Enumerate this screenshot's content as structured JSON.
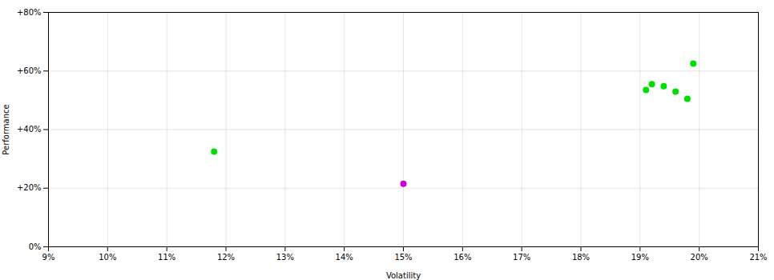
{
  "chart_data": {
    "type": "scatter",
    "xlabel": "Volatility",
    "ylabel": "Performance",
    "xlim": [
      0.09,
      0.21
    ],
    "ylim": [
      0.0,
      0.8
    ],
    "xticks": [
      {
        "value": 0.09,
        "label": "9%"
      },
      {
        "value": 0.1,
        "label": "10%"
      },
      {
        "value": 0.11,
        "label": "11%"
      },
      {
        "value": 0.12,
        "label": "12%"
      },
      {
        "value": 0.13,
        "label": "13%"
      },
      {
        "value": 0.14,
        "label": "14%"
      },
      {
        "value": 0.15,
        "label": "15%"
      },
      {
        "value": 0.16,
        "label": "16%"
      },
      {
        "value": 0.17,
        "label": "17%"
      },
      {
        "value": 0.18,
        "label": "18%"
      },
      {
        "value": 0.19,
        "label": "19%"
      },
      {
        "value": 0.2,
        "label": "20%"
      },
      {
        "value": 0.21,
        "label": "21%"
      }
    ],
    "yticks": [
      {
        "value": 0.0,
        "label": "0%"
      },
      {
        "value": 0.2,
        "label": "+20%"
      },
      {
        "value": 0.4,
        "label": "+40%"
      },
      {
        "value": 0.6,
        "label": "+60%"
      },
      {
        "value": 0.8,
        "label": "+80%"
      }
    ],
    "grid": true,
    "series": [
      {
        "color": "#00dd00",
        "x": [
          0.118,
          0.191,
          0.192,
          0.194,
          0.196,
          0.198,
          0.199
        ],
        "values": [
          0.325,
          0.535,
          0.555,
          0.548,
          0.53,
          0.505,
          0.625
        ]
      },
      {
        "color": "#cc00cc",
        "x": [
          0.15
        ],
        "values": [
          0.215
        ]
      }
    ]
  }
}
